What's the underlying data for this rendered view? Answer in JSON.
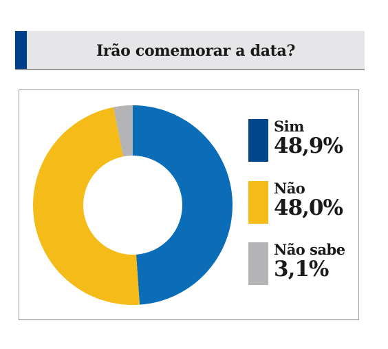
{
  "title": "Irão comemorar a data?",
  "colors": {
    "accent_bar": "#003f8a",
    "header_bg": "#e6e6e8"
  },
  "chart_data": {
    "type": "pie",
    "donut": true,
    "title": "Irão comemorar a data?",
    "legend_position": "right",
    "series": [
      {
        "label": "Sim",
        "value": 48.9,
        "display": "48,9%",
        "color": "#0b6db7",
        "legend_color": "#00468b"
      },
      {
        "label": "Não",
        "value": 48.0,
        "display": "48,0%",
        "color": "#f5bc19",
        "legend_color": "#f5bc19"
      },
      {
        "label": "Não sabe",
        "value": 3.1,
        "display": "3,1%",
        "color": "#b4b4b6",
        "legend_color": "#b4b4b6"
      }
    ]
  }
}
